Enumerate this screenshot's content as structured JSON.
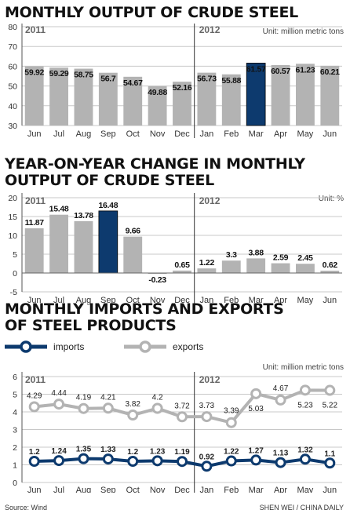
{
  "charts": {
    "output": {
      "title": "MONTHLY OUTPUT OF CRUDE STEEL",
      "unit": "Unit: million metric tons"
    },
    "yoy": {
      "title_line1": "YEAR-ON-YEAR CHANGE IN MONTHLY",
      "title_line2": "OUTPUT OF CRUDE STEEL",
      "unit": "Unit: %"
    },
    "trade": {
      "title_line1": "MONTHLY IMPORTS AND EXPORTS",
      "title_line2": "OF STEEL PRODUCTS",
      "unit": "Unit: million metric tons"
    }
  },
  "footer": {
    "source": "Source: Wind",
    "credit": "SHEN WEI / CHINA DAILY"
  },
  "chart_data": [
    {
      "type": "bar",
      "title": "MONTHLY OUTPUT OF CRUDE STEEL",
      "unit": "Unit: million metric tons",
      "categories": [
        "Jun",
        "Jul",
        "Aug",
        "Sep",
        "Oct",
        "Nov",
        "Dec",
        "Jan",
        "Feb",
        "Mar",
        "Apr",
        "May",
        "Jun"
      ],
      "values": [
        59.92,
        59.29,
        58.75,
        56.7,
        54.67,
        49.88,
        52.16,
        56.73,
        55.88,
        61.57,
        60.57,
        61.23,
        60.21
      ],
      "labels": [
        "59.92",
        "59.29",
        "58.75",
        "56.7",
        "54.67",
        "49.88",
        "52.16",
        "56.73",
        "55.88",
        "61.57",
        "60.57",
        "61.23",
        "60.21"
      ],
      "highlight_index": 9,
      "year_labels": [
        "2011",
        "2012"
      ],
      "year_split_index": 7,
      "ylim": [
        30,
        80
      ],
      "yticks": [
        30,
        40,
        50,
        60,
        70,
        80
      ],
      "colors": {
        "bar": "#b3b3b3",
        "highlight": "#0d3a6e"
      }
    },
    {
      "type": "bar",
      "title": "YEAR-ON-YEAR CHANGE IN MONTHLY OUTPUT OF CRUDE STEEL",
      "unit": "Unit: %",
      "categories": [
        "Jun",
        "Jul",
        "Aug",
        "Sep",
        "Oct",
        "Nov",
        "Dec",
        "Jan",
        "Feb",
        "Mar",
        "Apr",
        "May",
        "Jun"
      ],
      "values": [
        11.87,
        15.48,
        13.78,
        16.48,
        9.66,
        -0.23,
        0.65,
        1.22,
        3.3,
        3.88,
        2.59,
        2.45,
        0.62
      ],
      "labels": [
        "11.87",
        "15.48",
        "13.78",
        "16.48",
        "9.66",
        "-0.23",
        "0.65",
        "1.22",
        "3.3",
        "3.88",
        "2.59",
        "2.45",
        "0.62"
      ],
      "highlight_index": 3,
      "year_labels": [
        "2011",
        "2012"
      ],
      "year_split_index": 7,
      "ylim": [
        -5,
        20
      ],
      "yticks": [
        -5,
        0,
        5,
        10,
        15,
        20
      ],
      "colors": {
        "bar": "#b3b3b3",
        "highlight": "#0d3a6e"
      }
    },
    {
      "type": "line",
      "title": "MONTHLY IMPORTS AND EXPORTS OF STEEL PRODUCTS",
      "unit": "Unit: million metric tons",
      "categories": [
        "Jun",
        "Jul",
        "Aug",
        "Sep",
        "Oct",
        "Nov",
        "Dec",
        "Jan",
        "Feb",
        "Mar",
        "Apr",
        "May",
        "Jun"
      ],
      "series": [
        {
          "name": "imports",
          "values": [
            1.2,
            1.24,
            1.35,
            1.33,
            1.2,
            1.23,
            1.19,
            0.92,
            1.22,
            1.27,
            1.13,
            1.32,
            1.1
          ],
          "labels": [
            "1.2",
            "1.24",
            "1.35",
            "1.33",
            "1.2",
            "1.23",
            "1.19",
            "0.92",
            "1.22",
            "1.27",
            "1.13",
            "1.32",
            "1.1"
          ],
          "color": "#0d3a6e"
        },
        {
          "name": "exports",
          "values": [
            4.29,
            4.44,
            4.19,
            4.21,
            3.82,
            4.2,
            3.72,
            3.73,
            3.39,
            5.03,
            4.67,
            5.23,
            5.22
          ],
          "labels": [
            "4.29",
            "4.44",
            "4.19",
            "4.21",
            "3.82",
            "4.2",
            "3.72",
            "3.73",
            "3.39",
            "5.03",
            "4.67",
            "5.23",
            "5.22"
          ],
          "color": "#b3b3b3"
        }
      ],
      "year_labels": [
        "2011",
        "2012"
      ],
      "year_split_index": 7,
      "ylim": [
        0,
        6
      ],
      "yticks": [
        0,
        1,
        2,
        3,
        4,
        5,
        6
      ],
      "legend_placement": "top-left"
    }
  ]
}
